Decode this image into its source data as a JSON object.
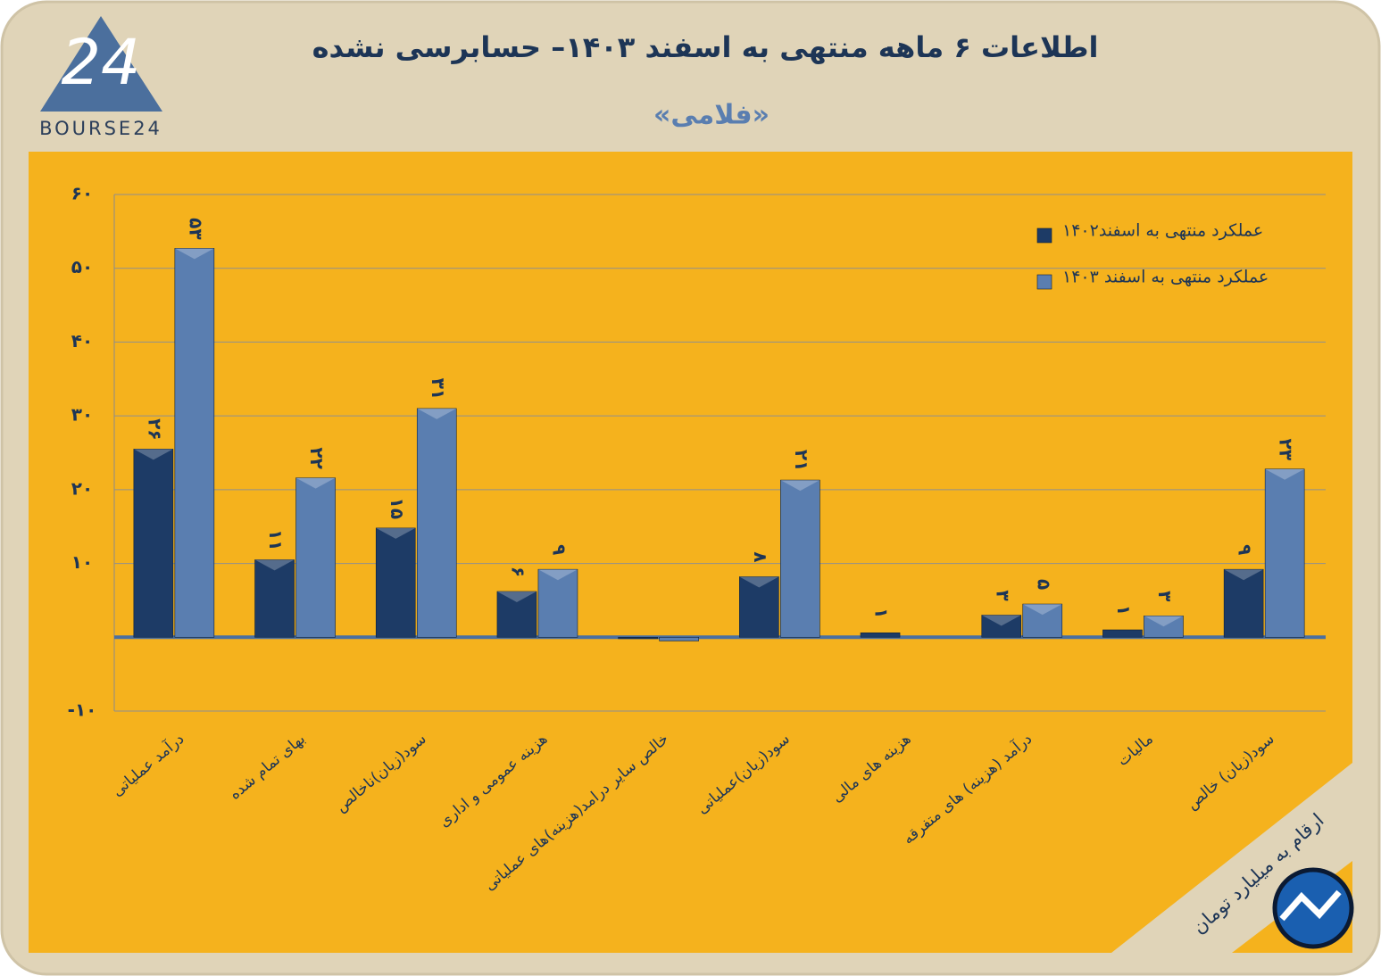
{
  "logo": {
    "number": "24",
    "text": "BOURSE24"
  },
  "note": "ارقام به میلیارد تومان",
  "chart_data": {
    "type": "bar",
    "title": "اطلاعات ۶ ماهه منتهی به اسفند  ۱۴۰۳– حسابرسی نشده",
    "subtitle": "«فلامی»",
    "categories": [
      "درآمد عملیاتی",
      "بهای تمام شده",
      "سود(زیان)ناخالص",
      "هزینه عمومی و اداری",
      "خالص سایر درامد(هزینه)های عملیاتی",
      "سود(زیان)عملیاتی",
      "هزینه های مالی",
      "درآمد (هزینه) های متفرقه",
      "مالیات",
      "سود(زیان) خالص"
    ],
    "series": [
      {
        "name": "عملکرد منتهی به اسفند۱۴۰۲",
        "color": "#1d3b66",
        "values": [
          25.5,
          10.5,
          14.8,
          6.2,
          -0.2,
          8.2,
          0.6,
          3,
          1,
          9.2
        ],
        "value_labels": [
          "۲۶",
          "۱۱",
          "۱۵",
          "۶",
          null,
          "۸",
          "۱",
          "۳",
          "۱",
          "۹"
        ]
      },
      {
        "name": "عملکرد منتهی به اسفند ۱۴۰۳",
        "color": "#5a7eb0",
        "values": [
          52.7,
          21.6,
          31,
          9.2,
          -0.5,
          21.3,
          null,
          4.5,
          2.9,
          22.8
        ],
        "value_labels": [
          "۵۳",
          "۲۲",
          "۳۱",
          "۹",
          null,
          "۲۱",
          null,
          "۵",
          "۳",
          "۲۳"
        ]
      }
    ],
    "ylim": [
      -10,
      60
    ],
    "yticks": [
      {
        "value": -10,
        "label": "-۱۰"
      },
      {
        "value": 10,
        "label": "۱۰"
      },
      {
        "value": 20,
        "label": "۲۰"
      },
      {
        "value": 30,
        "label": "۳۰"
      },
      {
        "value": 40,
        "label": "۴۰"
      },
      {
        "value": 50,
        "label": "۵۰"
      },
      {
        "value": 60,
        "label": "۶۰"
      }
    ],
    "grid": true,
    "legend": "top-right"
  }
}
